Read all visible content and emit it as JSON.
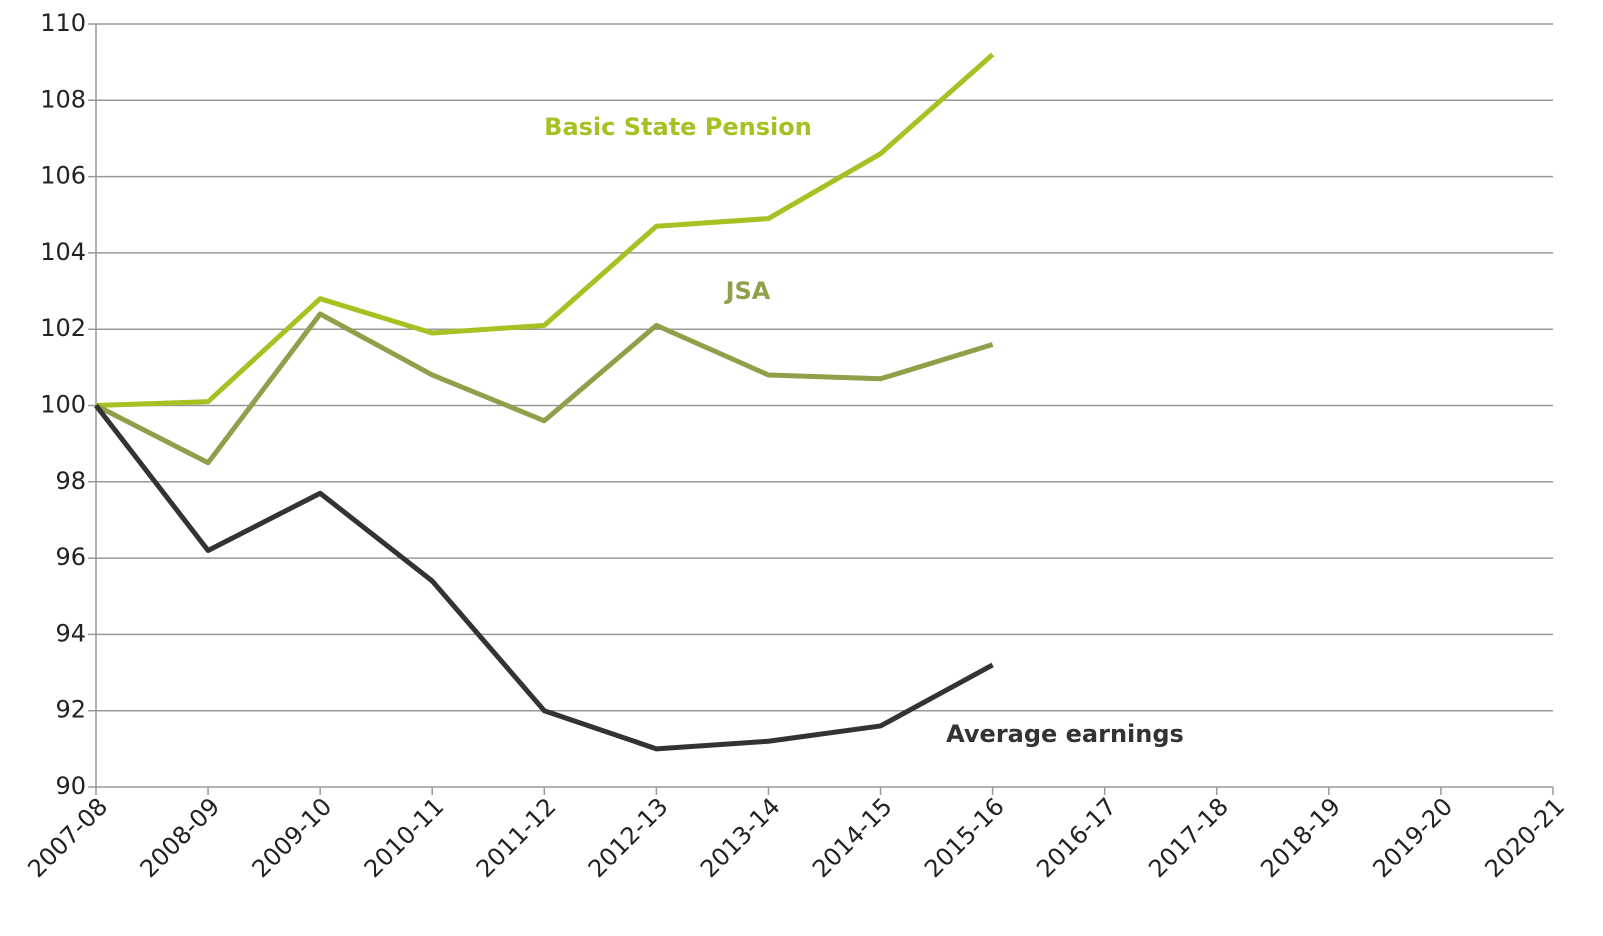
{
  "chart_data": {
    "type": "line",
    "categories": [
      "2007-08",
      "2008-09",
      "2009-10",
      "2010-11",
      "2011-12",
      "2012-13",
      "2013-14",
      "2014-15",
      "2015-16",
      "2016-17",
      "2017-18",
      "2018-19",
      "2019-20",
      "2020-21"
    ],
    "series": [
      {
        "name": "Basic State Pension",
        "color": "#a9c023",
        "values": [
          100,
          100.1,
          102.8,
          101.9,
          102.1,
          104.7,
          104.9,
          106.6,
          109.2,
          null,
          null,
          null,
          null,
          null
        ]
      },
      {
        "name": "JSA",
        "color": "#8fa04a",
        "values": [
          100,
          98.5,
          102.4,
          100.8,
          99.6,
          102.1,
          100.8,
          100.7,
          101.6,
          null,
          null,
          null,
          null,
          null
        ]
      },
      {
        "name": "Average earnings",
        "color": "#333333",
        "values": [
          100,
          96.2,
          97.7,
          95.4,
          92.0,
          91.0,
          91.2,
          91.6,
          93.2,
          null,
          null,
          null,
          null,
          null
        ]
      }
    ],
    "ylim": [
      90,
      110
    ],
    "yticks": [
      90,
      92,
      94,
      96,
      98,
      100,
      102,
      104,
      106,
      108,
      110
    ],
    "grid": true
  }
}
